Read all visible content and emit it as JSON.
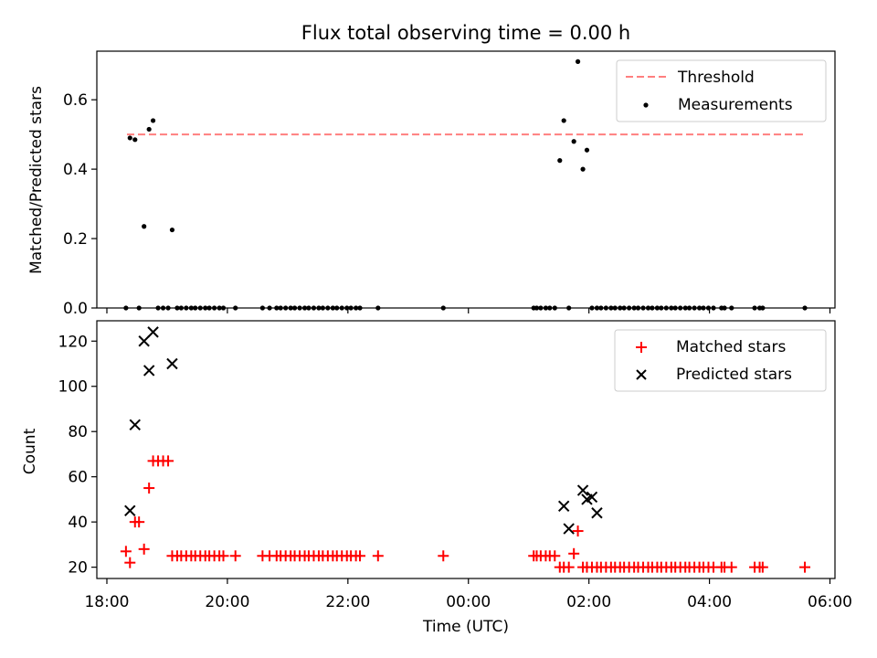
{
  "chart_data": [
    {
      "type": "scatter",
      "title": "Flux total observing time = 0.00 h",
      "xlabel": "",
      "ylabel": "Matched/Predicted stars",
      "xlim": [
        "17:50",
        "06:05"
      ],
      "ylim": [
        0,
        0.74
      ],
      "yticks": [
        "0.0",
        "0.2",
        "0.4",
        "0.6"
      ],
      "grid": false,
      "legend": "top-right",
      "threshold": {
        "name": "Threshold",
        "y": 0.5,
        "x_start": "18:20",
        "x_end": "05:35",
        "color": "#ff7f7f"
      },
      "series": [
        {
          "name": "Measurements",
          "color": "#000000",
          "x": [
            "18:19",
            "18:23",
            "18:28",
            "18:32",
            "18:37",
            "18:42",
            "18:46",
            "18:51",
            "18:56",
            "19:01",
            "19:05",
            "19:10",
            "19:14",
            "19:19",
            "19:24",
            "19:28",
            "19:33",
            "19:38",
            "19:42",
            "19:47",
            "19:52",
            "19:56",
            "20:08",
            "20:35",
            "20:42",
            "20:49",
            "20:53",
            "20:58",
            "21:03",
            "21:07",
            "21:12",
            "21:17",
            "21:21",
            "21:26",
            "21:31",
            "21:35",
            "21:40",
            "21:45",
            "21:49",
            "21:54",
            "21:59",
            "22:03",
            "22:08",
            "22:12",
            "22:30",
            "23:35",
            "01:05",
            "01:08",
            "01:12",
            "01:17",
            "01:21",
            "01:26",
            "01:31",
            "01:35",
            "01:40",
            "01:45",
            "01:49",
            "01:54",
            "01:58",
            "02:03",
            "02:08",
            "02:12",
            "02:17",
            "02:22",
            "02:26",
            "02:31",
            "02:35",
            "02:40",
            "02:45",
            "02:49",
            "02:54",
            "02:59",
            "03:03",
            "03:08",
            "03:12",
            "03:17",
            "03:22",
            "03:26",
            "03:31",
            "03:36",
            "03:40",
            "03:45",
            "03:50",
            "03:54",
            "03:59",
            "04:04",
            "04:12",
            "04:15",
            "04:22",
            "04:45",
            "04:50",
            "04:53",
            "05:35"
          ],
          "y": [
            0,
            0.49,
            0.485,
            0,
            0.235,
            0.515,
            0.54,
            0,
            0,
            0,
            0.225,
            0,
            0,
            0,
            0,
            0,
            0,
            0,
            0,
            0,
            0,
            0,
            0,
            0,
            0,
            0,
            0,
            0,
            0,
            0,
            0,
            0,
            0,
            0,
            0,
            0,
            0,
            0,
            0,
            0,
            0,
            0,
            0,
            0,
            0,
            0,
            0,
            0,
            0,
            0,
            0,
            0,
            0.425,
            0.54,
            0,
            0.48,
            0.71,
            0.4,
            0.455,
            0,
            0,
            0,
            0,
            0,
            0,
            0,
            0,
            0,
            0,
            0,
            0,
            0,
            0,
            0,
            0,
            0,
            0,
            0,
            0,
            0,
            0,
            0,
            0,
            0,
            0,
            0,
            0,
            0,
            0,
            0,
            0,
            0,
            0
          ]
        }
      ]
    },
    {
      "type": "scatter",
      "title": "",
      "xlabel": "Time (UTC)",
      "ylabel": "Count",
      "xlim": [
        "17:50",
        "06:05"
      ],
      "ylim": [
        15,
        129
      ],
      "xticks": [
        "18:00",
        "20:00",
        "22:00",
        "00:00",
        "02:00",
        "04:00",
        "06:00"
      ],
      "yticks": [
        "20",
        "40",
        "60",
        "80",
        "100",
        "120"
      ],
      "grid": false,
      "legend": "top-right",
      "series": [
        {
          "name": "Matched stars",
          "marker": "+",
          "color": "#ff0000",
          "x": [
            "18:19",
            "18:23",
            "18:28",
            "18:32",
            "18:37",
            "18:42",
            "18:46",
            "18:51",
            "18:56",
            "19:01",
            "19:05",
            "19:10",
            "19:14",
            "19:19",
            "19:24",
            "19:28",
            "19:33",
            "19:38",
            "19:42",
            "19:47",
            "19:52",
            "19:56",
            "20:08",
            "20:35",
            "20:42",
            "20:49",
            "20:53",
            "20:58",
            "21:03",
            "21:07",
            "21:12",
            "21:17",
            "21:21",
            "21:26",
            "21:31",
            "21:35",
            "21:40",
            "21:45",
            "21:49",
            "21:54",
            "21:59",
            "22:03",
            "22:08",
            "22:12",
            "22:30",
            "23:35",
            "01:05",
            "01:08",
            "01:12",
            "01:17",
            "01:21",
            "01:26",
            "01:31",
            "01:35",
            "01:40",
            "01:45",
            "01:49",
            "01:54",
            "01:58",
            "02:03",
            "02:08",
            "02:12",
            "02:17",
            "02:22",
            "02:26",
            "02:31",
            "02:35",
            "02:40",
            "02:45",
            "02:49",
            "02:54",
            "02:59",
            "03:03",
            "03:08",
            "03:12",
            "03:17",
            "03:22",
            "03:26",
            "03:31",
            "03:36",
            "03:40",
            "03:45",
            "03:50",
            "03:54",
            "03:59",
            "04:04",
            "04:12",
            "04:15",
            "04:22",
            "04:45",
            "04:50",
            "04:53",
            "05:35"
          ],
          "y": [
            27,
            22,
            40,
            40,
            28,
            55,
            67,
            67,
            67,
            67,
            25,
            25,
            25,
            25,
            25,
            25,
            25,
            25,
            25,
            25,
            25,
            25,
            25,
            25,
            25,
            25,
            25,
            25,
            25,
            25,
            25,
            25,
            25,
            25,
            25,
            25,
            25,
            25,
            25,
            25,
            25,
            25,
            25,
            25,
            25,
            25,
            25,
            25,
            25,
            25,
            25,
            25,
            20,
            20,
            20,
            26,
            36,
            20,
            20,
            20,
            20,
            20,
            20,
            20,
            20,
            20,
            20,
            20,
            20,
            20,
            20,
            20,
            20,
            20,
            20,
            20,
            20,
            20,
            20,
            20,
            20,
            20,
            20,
            20,
            20,
            20,
            20,
            20,
            20,
            20,
            20,
            20,
            20
          ]
        },
        {
          "name": "Predicted stars",
          "marker": "x",
          "color": "#000000",
          "x": [
            "18:23",
            "18:28",
            "18:37",
            "18:42",
            "18:46",
            "19:05",
            "01:35",
            "01:40",
            "01:54",
            "01:58",
            "02:03",
            "02:08"
          ],
          "y": [
            45,
            83,
            120,
            107,
            124,
            110,
            47,
            37,
            54,
            50,
            51,
            44
          ]
        }
      ]
    }
  ]
}
